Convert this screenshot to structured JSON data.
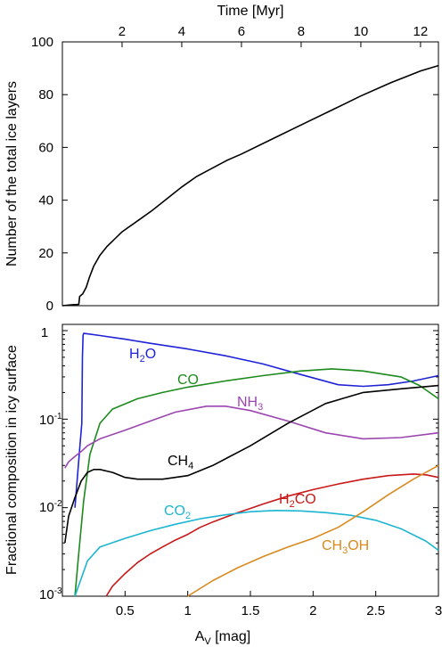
{
  "colors": {
    "H2O": "#1f23d6",
    "CO": "#1c8a1c",
    "NH3": "#9b45b0",
    "CH4": "#000000",
    "H2CO": "#c81818",
    "CO2": "#1bb5d2",
    "CH3OH": "#d88a1f",
    "total": "#000000"
  },
  "chart_data": [
    {
      "type": "line",
      "xlabel": "Time [Myr]",
      "ylabel": "Number of the total ice layers",
      "xlim": [
        0,
        12.6
      ],
      "ylim": [
        0,
        100
      ],
      "xticks": [
        "2",
        "4",
        "6",
        "8",
        "10",
        "12"
      ],
      "yticks": [
        "0",
        "20",
        "40",
        "60",
        "80",
        "100"
      ],
      "grid": false,
      "series": [
        {
          "values_x": [
            0.0,
            0.3,
            0.55,
            0.58,
            0.68,
            0.8,
            0.9,
            1.05,
            1.25,
            1.5,
            2.0,
            2.5,
            3.0,
            3.5,
            4.0,
            4.5,
            5.0,
            5.5,
            6.0,
            7.0,
            8.0,
            9.0,
            10.0,
            11.0,
            12.0,
            12.6
          ],
          "values_y": [
            0,
            0.3,
            0.5,
            3.5,
            4.5,
            7,
            10.5,
            15,
            19,
            22.5,
            28,
            32,
            36,
            40.5,
            45,
            49,
            52,
            55,
            57.5,
            63,
            68.5,
            74,
            79.5,
            84.5,
            89,
            91
          ]
        }
      ]
    },
    {
      "type": "line",
      "xlabel": "A_V [mag]",
      "ylabel": "Fractional composition in icy surface",
      "xlim": [
        0.0,
        3.0
      ],
      "ylim": [
        0.001,
        1
      ],
      "yscale": "log",
      "xticks": [
        "0.5",
        "1",
        "1.5",
        "2",
        "2.5",
        "3"
      ],
      "grid": false,
      "series": [
        {
          "name": "H2O",
          "x": [
            0.1,
            0.14,
            0.155,
            0.16,
            0.165,
            0.17,
            0.2,
            0.3,
            0.5,
            0.7,
            1.0,
            1.3,
            1.6,
            1.9,
            2.2,
            2.4,
            2.6,
            2.8,
            3.0
          ],
          "y": [
            0.01,
            0.05,
            0.09,
            0.5,
            0.88,
            0.93,
            0.92,
            0.88,
            0.8,
            0.72,
            0.62,
            0.52,
            0.42,
            0.32,
            0.245,
            0.235,
            0.245,
            0.27,
            0.31
          ]
        },
        {
          "name": "CO",
          "x": [
            0.1,
            0.13,
            0.17,
            0.22,
            0.3,
            0.4,
            0.6,
            0.8,
            1.0,
            1.3,
            1.6,
            1.9,
            2.15,
            2.4,
            2.7,
            2.85,
            3.0
          ],
          "y": [
            0.001,
            0.003,
            0.012,
            0.04,
            0.09,
            0.13,
            0.17,
            0.2,
            0.23,
            0.27,
            0.31,
            0.35,
            0.37,
            0.35,
            0.3,
            0.24,
            0.17
          ]
        },
        {
          "name": "NH3",
          "x": [
            0.02,
            0.05,
            0.1,
            0.15,
            0.2,
            0.3,
            0.5,
            0.7,
            0.9,
            1.15,
            1.3,
            1.5,
            1.8,
            2.1,
            2.4,
            2.7,
            3.0
          ],
          "y": [
            0.028,
            0.033,
            0.038,
            0.043,
            0.05,
            0.06,
            0.075,
            0.095,
            0.12,
            0.14,
            0.14,
            0.125,
            0.095,
            0.07,
            0.06,
            0.062,
            0.07
          ]
        },
        {
          "name": "CH4",
          "x": [
            0.02,
            0.05,
            0.1,
            0.15,
            0.2,
            0.25,
            0.3,
            0.4,
            0.5,
            0.6,
            0.8,
            1.0,
            1.2,
            1.5,
            1.8,
            2.1,
            2.4,
            2.7,
            3.0
          ],
          "y": [
            0.004,
            0.008,
            0.013,
            0.02,
            0.025,
            0.027,
            0.027,
            0.025,
            0.022,
            0.021,
            0.021,
            0.023,
            0.03,
            0.05,
            0.09,
            0.15,
            0.2,
            0.22,
            0.24
          ]
        },
        {
          "name": "H2CO",
          "x": [
            0.35,
            0.4,
            0.5,
            0.6,
            0.7,
            0.8,
            0.9,
            1.0,
            1.1,
            1.2,
            1.3,
            1.4,
            1.5,
            1.6,
            1.8,
            2.0,
            2.2,
            2.4,
            2.6,
            2.8,
            2.9,
            3.0
          ],
          "y": [
            0.001,
            0.0013,
            0.0018,
            0.0024,
            0.003,
            0.0036,
            0.0043,
            0.005,
            0.006,
            0.0069,
            0.0078,
            0.0088,
            0.0098,
            0.011,
            0.0135,
            0.016,
            0.0185,
            0.021,
            0.023,
            0.024,
            0.0235,
            0.022
          ]
        },
        {
          "name": "CO2",
          "x": [
            0.1,
            0.2,
            0.3,
            0.5,
            0.7,
            0.9,
            1.1,
            1.3,
            1.5,
            1.7,
            1.9,
            2.1,
            2.3,
            2.5,
            2.7,
            2.9,
            3.0
          ],
          "y": [
            0.001,
            0.0025,
            0.0036,
            0.0045,
            0.0055,
            0.0065,
            0.0075,
            0.0083,
            0.009,
            0.0093,
            0.0092,
            0.0088,
            0.0082,
            0.0072,
            0.0058,
            0.0042,
            0.0033
          ]
        },
        {
          "name": "CH3OH",
          "x": [
            1.0,
            1.2,
            1.4,
            1.6,
            1.8,
            2.0,
            2.2,
            2.4,
            2.6,
            2.8,
            3.0
          ],
          "y": [
            0.001,
            0.0015,
            0.0021,
            0.0028,
            0.0036,
            0.0045,
            0.006,
            0.009,
            0.014,
            0.021,
            0.03
          ]
        }
      ]
    }
  ],
  "labels": {
    "top_xlabel": "Time [Myr]",
    "top_ylabel": "Number of the total ice layers",
    "bottom_ylabel": "Fractional composition in icy surface",
    "bottom_xlabel_main": "A",
    "bottom_xlabel_sub": "V",
    "bottom_xlabel_rest": " [mag]",
    "log_tick_base": "10",
    "log_tick_exp_neg1": "-1",
    "log_tick_exp_neg2": "-2",
    "log_tick_exp_neg3": "-3",
    "top_one": "1",
    "species": {
      "H2O": {
        "a": "H",
        "sub": "2",
        "b": "O"
      },
      "CO": {
        "a": "CO",
        "sub": "",
        "b": ""
      },
      "NH3": {
        "a": "NH",
        "sub": "3",
        "b": ""
      },
      "CH4": {
        "a": "CH",
        "sub": "4",
        "b": ""
      },
      "H2CO": {
        "a": "H",
        "sub": "2",
        "b": "CO"
      },
      "CO2": {
        "a": "CO",
        "sub": "2",
        "b": ""
      },
      "CH3OH": {
        "a": "CH",
        "sub": "3",
        "b": "OH"
      }
    }
  }
}
